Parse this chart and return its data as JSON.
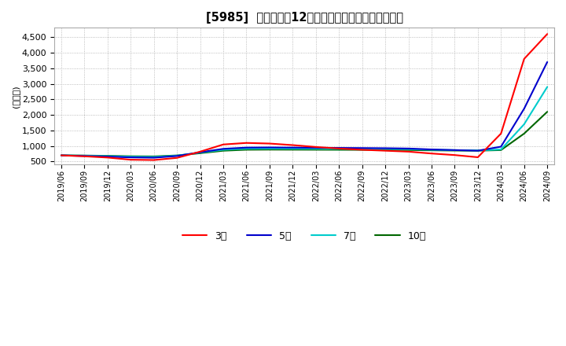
{
  "title": "[5985]  当期純利益12か月移動合計の標準偏差の推移",
  "ylabel": "(百万円)",
  "ylim": [
    400,
    4800
  ],
  "yticks": [
    500,
    1000,
    1500,
    2000,
    2500,
    3000,
    3500,
    4000,
    4500
  ],
  "line_colors": {
    "3年": "#ff0000",
    "5年": "#0000cc",
    "7年": "#00cccc",
    "10年": "#006600"
  },
  "x_labels": [
    "2019/06",
    "2019/09",
    "2019/12",
    "2020/03",
    "2020/06",
    "2020/09",
    "2020/12",
    "2021/03",
    "2021/06",
    "2021/09",
    "2021/12",
    "2022/03",
    "2022/06",
    "2022/09",
    "2022/12",
    "2023/03",
    "2023/06",
    "2023/09",
    "2023/12",
    "2024/03",
    "2024/06",
    "2024/09"
  ],
  "series": {
    "3年": [
      700,
      670,
      630,
      560,
      550,
      620,
      820,
      1050,
      1100,
      1080,
      1030,
      970,
      920,
      880,
      850,
      820,
      760,
      710,
      640,
      1400,
      3800,
      4600
    ],
    "5年": [
      700,
      680,
      660,
      635,
      625,
      680,
      800,
      910,
      950,
      955,
      950,
      945,
      940,
      935,
      930,
      920,
      890,
      870,
      850,
      980,
      2200,
      3700
    ],
    "7年": [
      700,
      690,
      675,
      658,
      650,
      690,
      790,
      880,
      915,
      918,
      916,
      913,
      910,
      908,
      905,
      900,
      880,
      868,
      858,
      890,
      1700,
      2900
    ],
    "10年": [
      700,
      695,
      685,
      672,
      667,
      698,
      770,
      850,
      882,
      886,
      884,
      882,
      880,
      878,
      876,
      873,
      862,
      855,
      851,
      870,
      1400,
      2100
    ]
  },
  "background_color": "#ffffff",
  "grid_color": "#aaaaaa"
}
